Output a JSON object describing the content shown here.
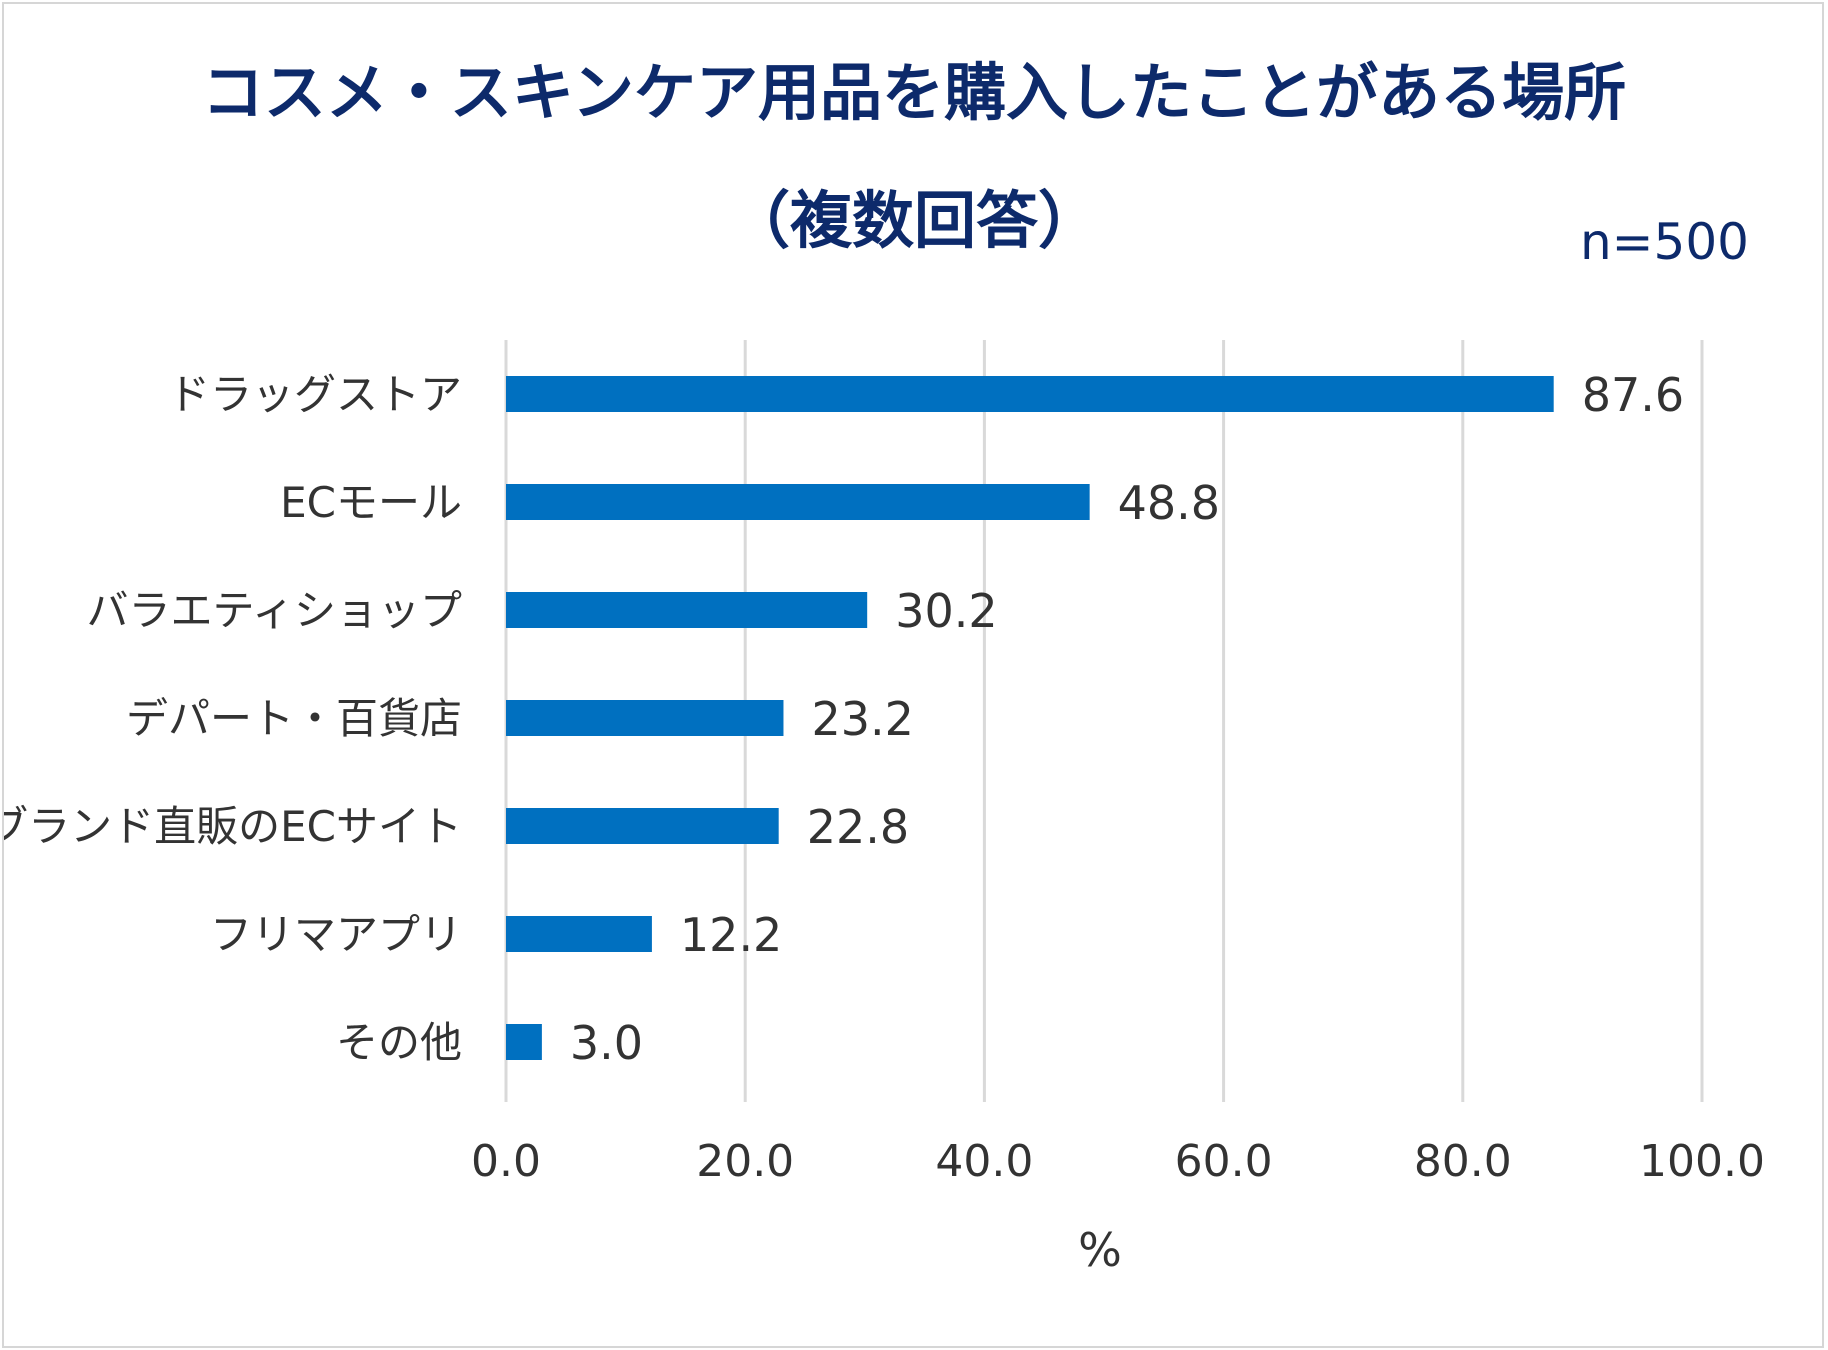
{
  "chart_data": {
    "type": "bar",
    "orientation": "horizontal",
    "title": "コスメ・スキンケア用品を購入したことがある場所",
    "subtitle": "（複数回答）",
    "sample_size": "n=500",
    "xlabel": "%",
    "xlim": [
      0,
      100
    ],
    "x_ticks": [
      "0.0",
      "20.0",
      "40.0",
      "60.0",
      "80.0",
      "100.0"
    ],
    "grid": "vertical",
    "bar_color": "#0070c0",
    "categories": [
      "ドラッグストア",
      "ECモール",
      "バラエティショップ",
      "デパート・百貨店",
      "ブランド直販のECサイト",
      "フリマアプリ",
      "その他"
    ],
    "values": [
      87.6,
      48.8,
      30.2,
      23.2,
      22.8,
      12.2,
      3.0
    ],
    "value_labels": [
      "87.6",
      "48.8",
      "30.2",
      "23.2",
      "22.8",
      "12.2",
      "3.0"
    ]
  }
}
